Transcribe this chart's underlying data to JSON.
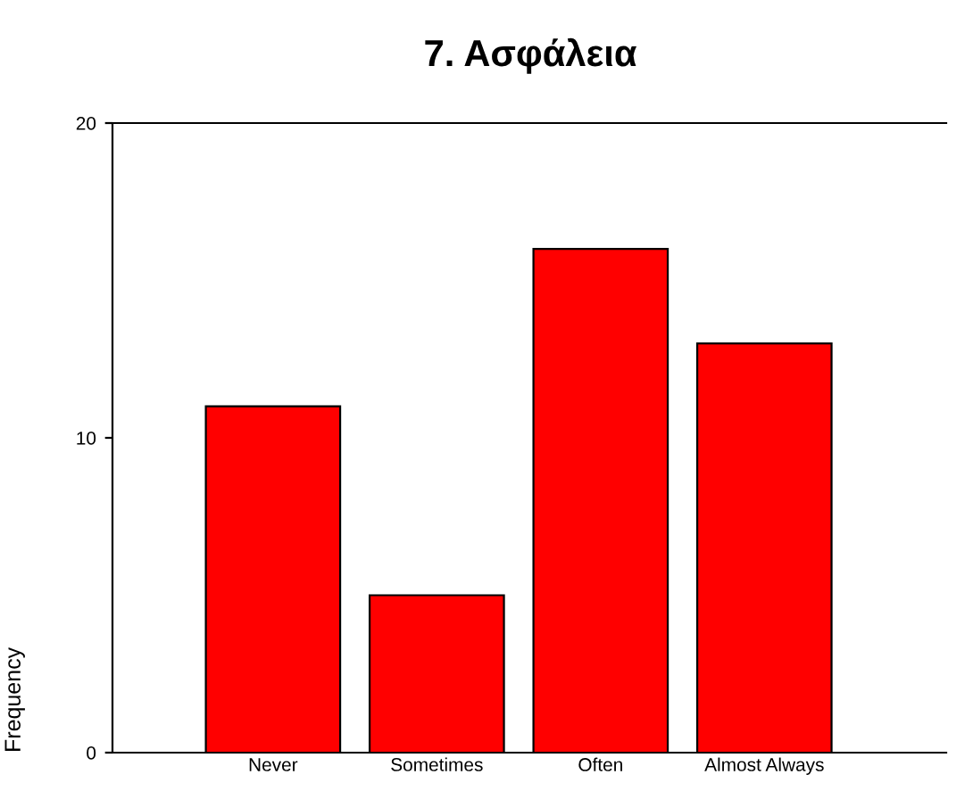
{
  "chart_data": {
    "type": "bar",
    "title": "7. Ασφάλεια",
    "ylabel": "Frequency",
    "categories": [
      "Never",
      "Sometimes",
      "Often",
      "Almost Always"
    ],
    "values": [
      11,
      5,
      16,
      13
    ],
    "color": "#ff0000",
    "ylim": [
      0,
      20
    ],
    "yticks": [
      0,
      10,
      20
    ],
    "grid": false,
    "legend": false
  }
}
